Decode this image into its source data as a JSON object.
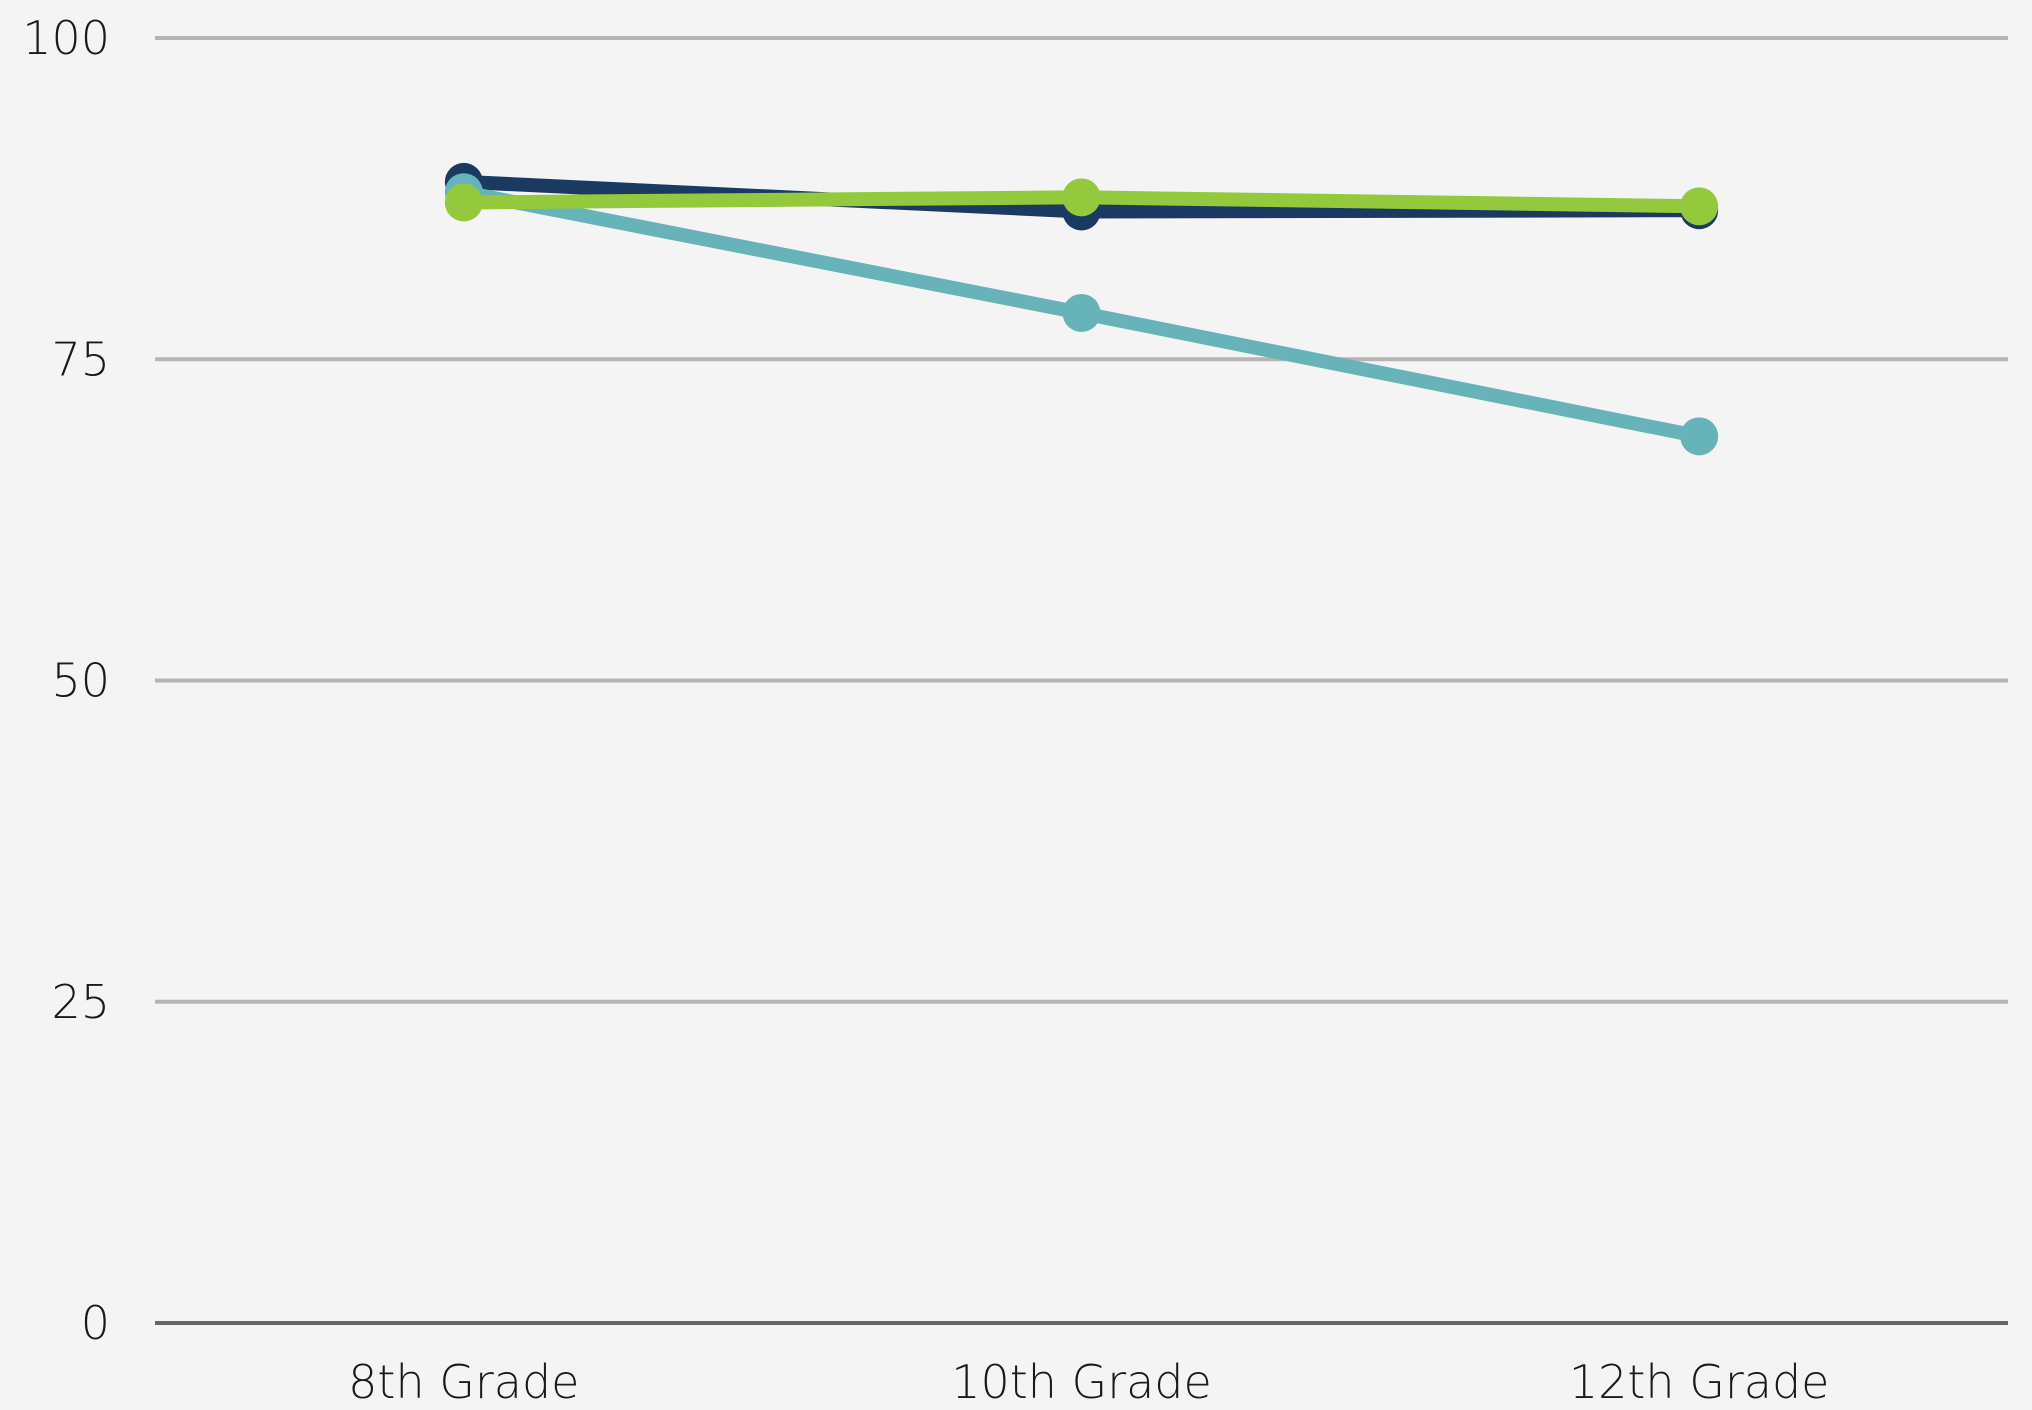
{
  "chart_data": {
    "type": "line",
    "categories": [
      "8th Grade",
      "10th Grade",
      "12th Grade"
    ],
    "y_ticks": [
      0,
      25,
      50,
      75,
      100
    ],
    "ylim": [
      0,
      100
    ],
    "grid": true,
    "series": [
      {
        "color": "#1b3a62",
        "values": [
          88.8,
          86.5,
          86.6
        ]
      },
      {
        "color": "#67b3ba",
        "values": [
          88.0,
          78.6,
          69.0
        ]
      },
      {
        "color": "#95c93d",
        "values": [
          87.2,
          87.6,
          86.9
        ]
      }
    ]
  }
}
